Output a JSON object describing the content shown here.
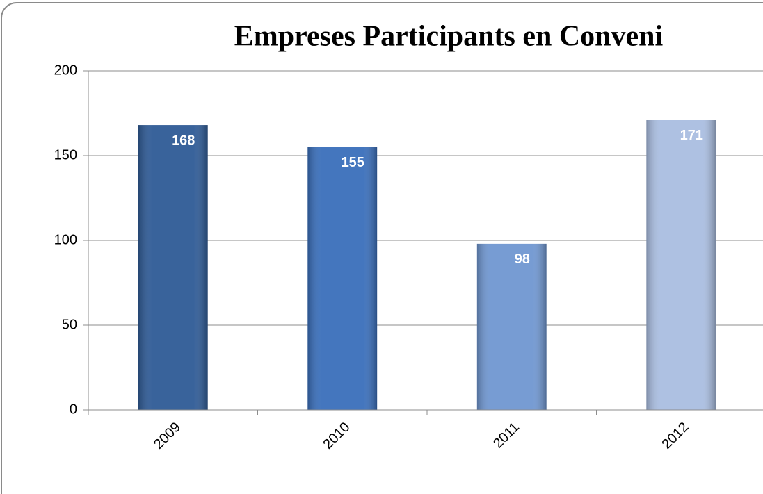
{
  "chart_data": {
    "type": "bar",
    "title": "Empreses Participants en Conveni",
    "categories": [
      "2009",
      "2010",
      "2011",
      "2012"
    ],
    "values": [
      168,
      155,
      98,
      171
    ],
    "colors": [
      "#2f5b96",
      "#3a6fbb",
      "#7097d1",
      "#aabee1"
    ],
    "ylim": [
      0,
      200
    ],
    "yticks": [
      0,
      50,
      100,
      150,
      200
    ],
    "grid": true
  }
}
